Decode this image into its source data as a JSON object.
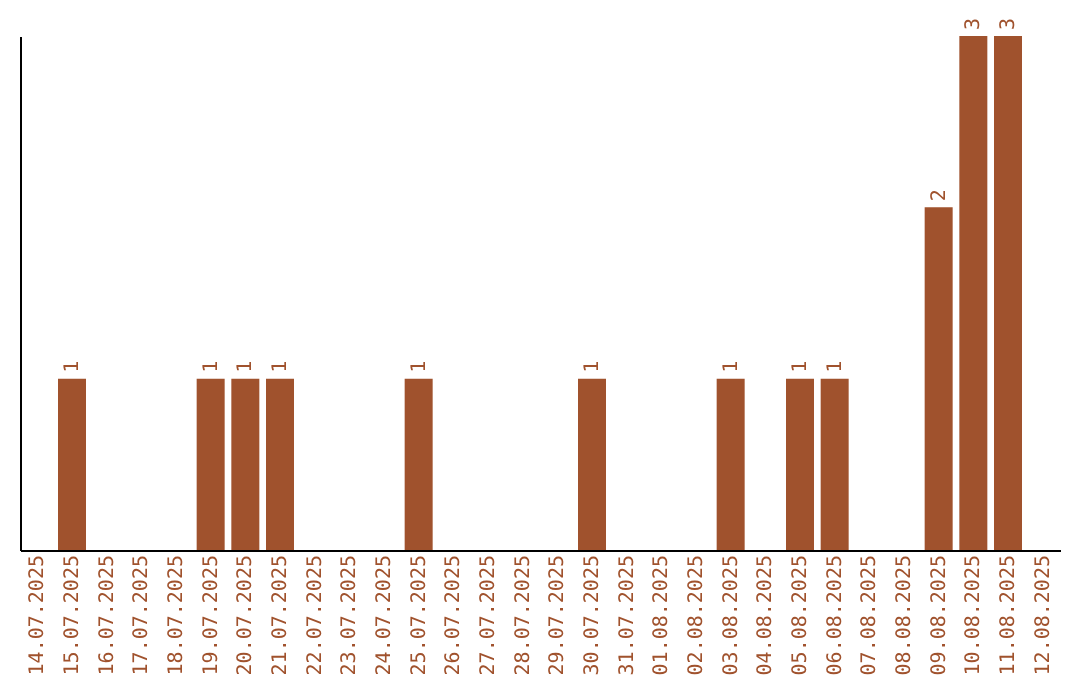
{
  "chart_data": {
    "type": "bar",
    "categories": [
      "14.07.2025",
      "15.07.2025",
      "16.07.2025",
      "17.07.2025",
      "18.07.2025",
      "19.07.2025",
      "20.07.2025",
      "21.07.2025",
      "22.07.2025",
      "23.07.2025",
      "24.07.2025",
      "25.07.2025",
      "26.07.2025",
      "27.07.2025",
      "28.07.2025",
      "29.07.2025",
      "30.07.2025",
      "31.07.2025",
      "01.08.2025",
      "02.08.2025",
      "03.08.2025",
      "04.08.2025",
      "05.08.2025",
      "06.08.2025",
      "07.08.2025",
      "08.08.2025",
      "09.08.2025",
      "10.08.2025",
      "11.08.2025",
      "12.08.2025"
    ],
    "values": [
      0,
      1,
      0,
      0,
      0,
      1,
      1,
      1,
      0,
      0,
      0,
      1,
      0,
      0,
      0,
      0,
      1,
      0,
      0,
      0,
      1,
      0,
      1,
      1,
      0,
      0,
      2,
      3,
      3,
      0
    ],
    "value_labels": [
      null,
      "1",
      null,
      null,
      null,
      "1",
      "1",
      "1",
      null,
      null,
      null,
      "1",
      null,
      null,
      null,
      null,
      "1",
      null,
      null,
      null,
      "1",
      null,
      "1",
      "1",
      null,
      null,
      "2",
      "3",
      "3",
      null
    ],
    "color": "#a0522d",
    "ylim": [
      0,
      3
    ],
    "tick_labels": "x",
    "grid": false
  }
}
